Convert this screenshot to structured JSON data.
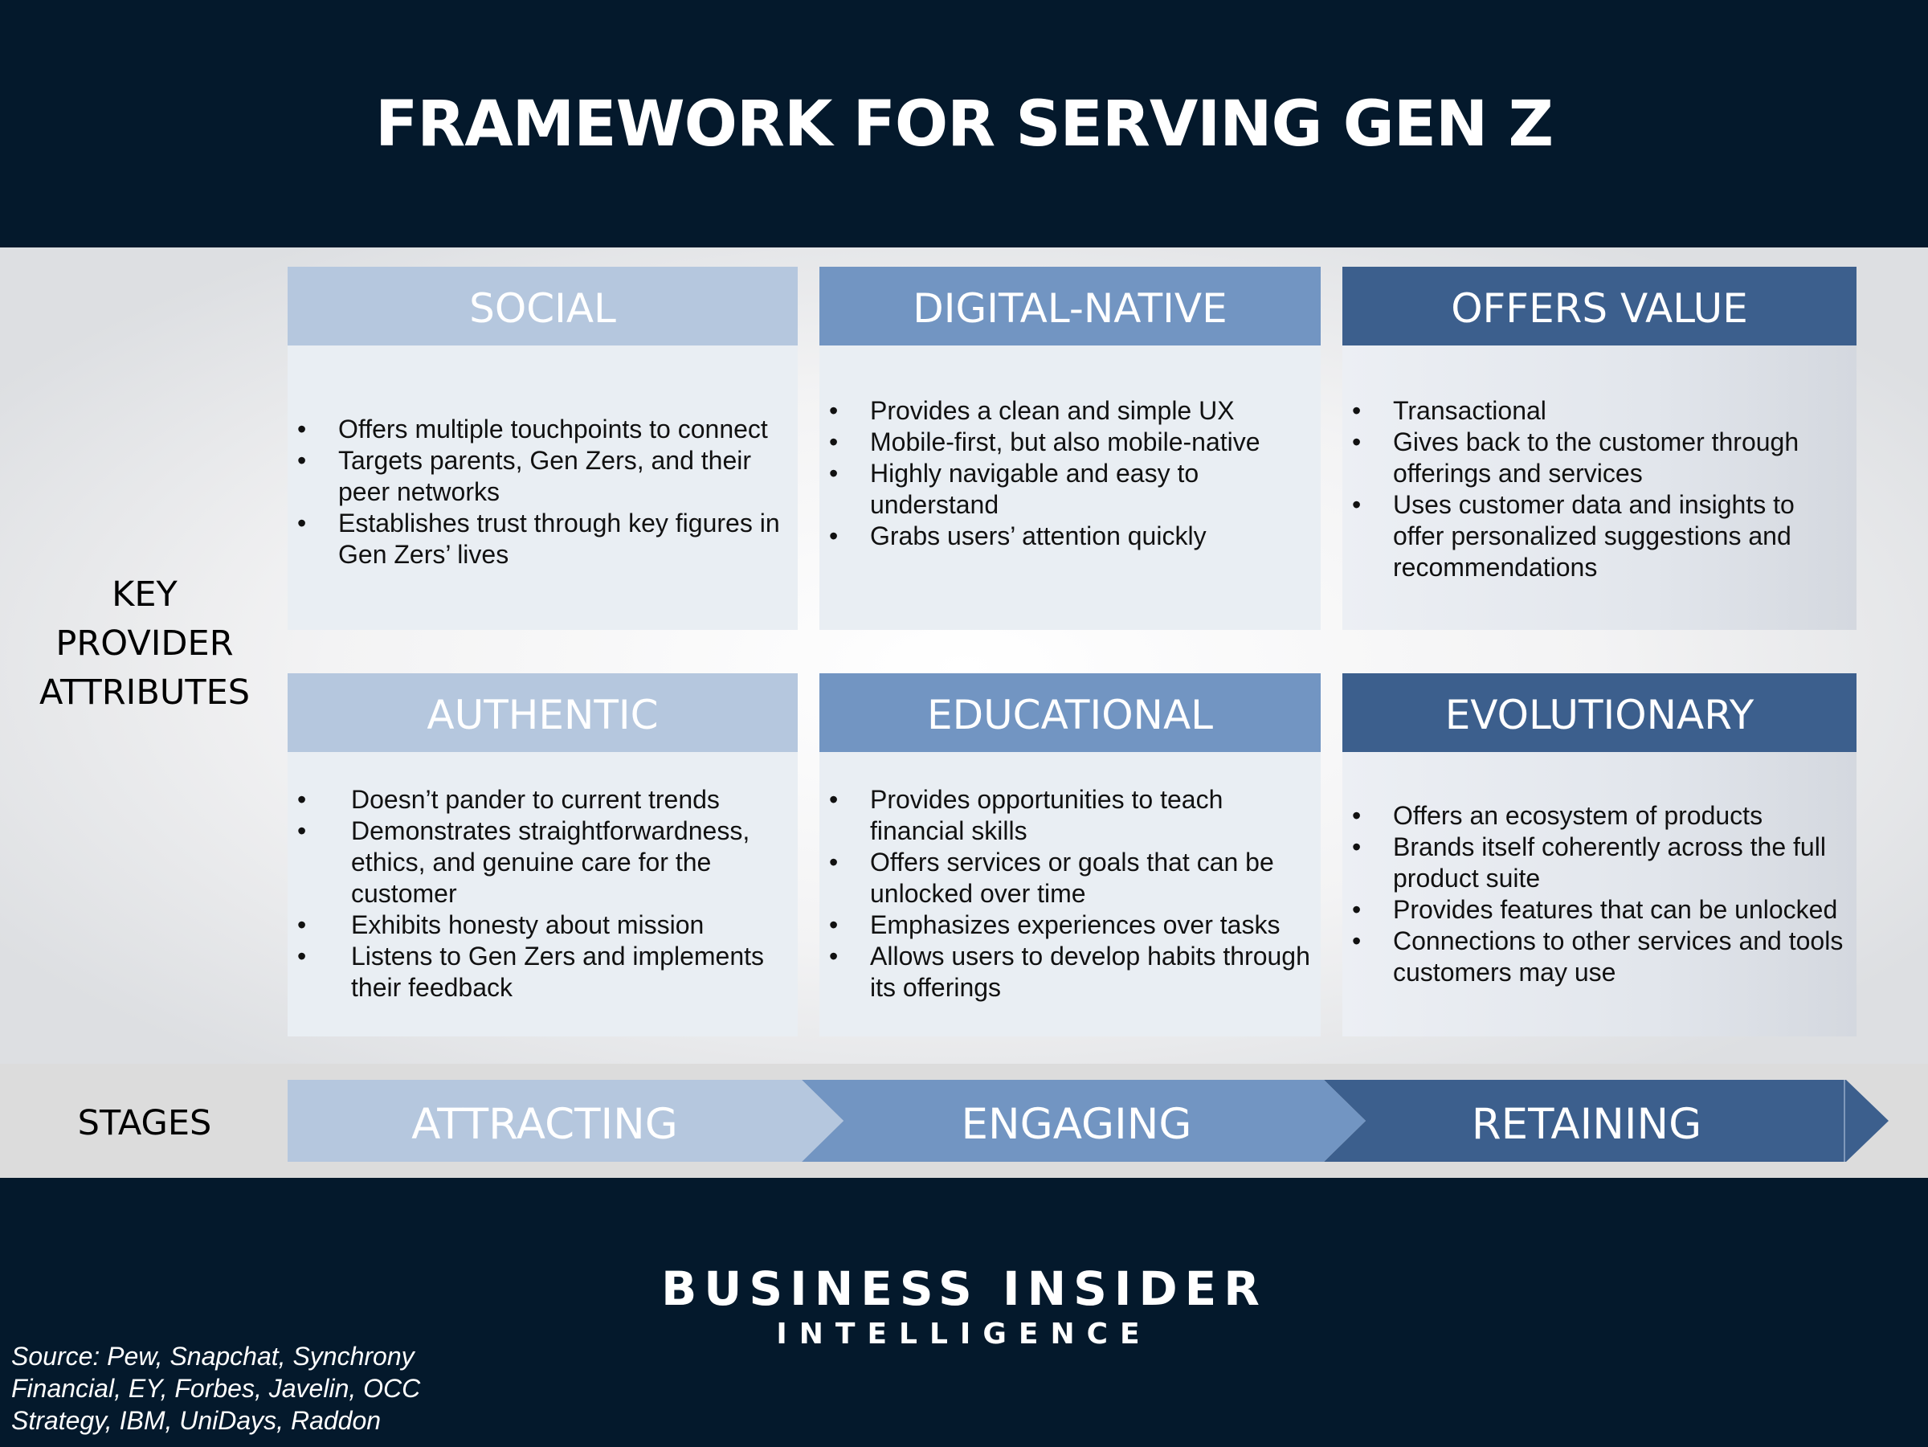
{
  "title": "FRAMEWORK FOR SERVING GEN Z",
  "row_label_lines": [
    "KEY",
    "PROVIDER",
    "ATTRIBUTES"
  ],
  "stages_label": "STAGES",
  "colors": {
    "background": "#04192c",
    "light": "#b5c7de",
    "mid": "#7295c2",
    "dark": "#3c5f8d",
    "card_body": "#e9eef3"
  },
  "cards": [
    {
      "heading": "SOCIAL",
      "bullets": [
        "Offers multiple touchpoints to connect",
        "Targets parents, Gen Zers, and their peer networks",
        "Establishes trust through key figures in Gen Zers’ lives"
      ]
    },
    {
      "heading": "DIGITAL-NATIVE",
      "bullets": [
        "Provides a clean and simple UX",
        "Mobile-first, but also mobile-native",
        "Highly navigable and easy to understand",
        "Grabs users’ attention quickly"
      ]
    },
    {
      "heading": "OFFERS VALUE",
      "bullets": [
        "Transactional",
        "Gives back to the customer through offerings and services",
        "Uses customer data and insights to offer personalized suggestions and recommendations"
      ]
    },
    {
      "heading": "AUTHENTIC",
      "bullets": [
        "Doesn’t pander to current trends",
        "Demonstrates straightforwardness, ethics, and genuine care for the customer",
        "Exhibits honesty about mission",
        "Listens to Gen Zers and implements their feedback"
      ]
    },
    {
      "heading": "EDUCATIONAL",
      "bullets": [
        "Provides opportunities to teach financial skills",
        "Offers services or goals that can be unlocked over time",
        "Emphasizes experiences over tasks",
        "Allows users to develop habits through its offerings"
      ]
    },
    {
      "heading": "EVOLUTIONARY",
      "bullets": [
        "Offers an ecosystem of products",
        "Brands itself coherently across the full product suite",
        "Provides features that can be unlocked",
        "Connections to other services and tools customers may use"
      ]
    }
  ],
  "stages": [
    "ATTRACTING",
    "ENGAGING",
    "RETAINING"
  ],
  "logo": {
    "line1": "BUSINESS INSIDER",
    "line2": "INTELLIGENCE"
  },
  "source_lines": [
    "Source: Pew, Snapchat, Synchrony",
    "Financial, EY, Forbes, Javelin, OCC",
    "Strategy, IBM, UniDays, Raddon"
  ]
}
